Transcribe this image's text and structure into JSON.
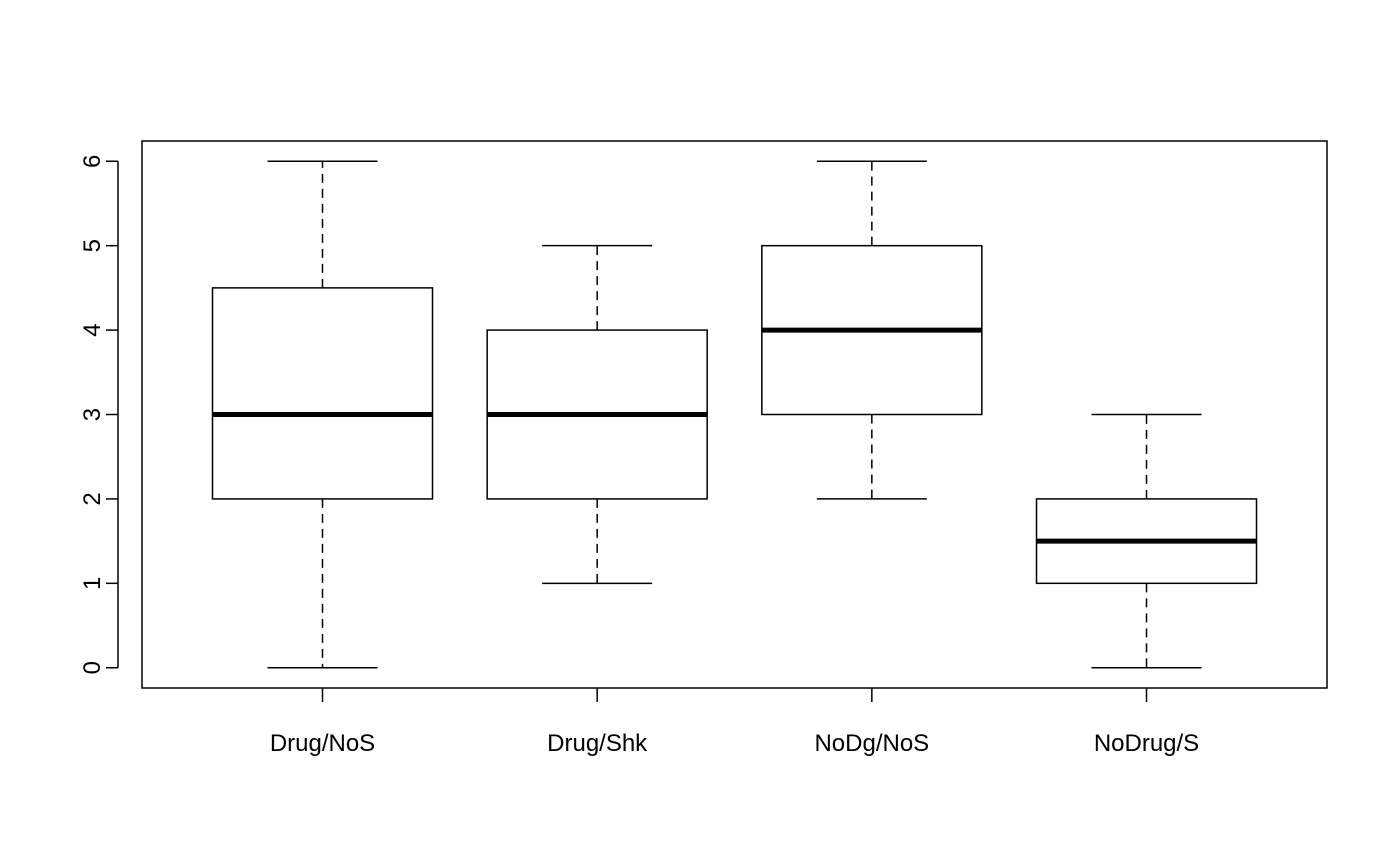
{
  "chart_data": {
    "type": "boxplot",
    "title": "",
    "xlabel": "",
    "ylabel": "",
    "categories": [
      "Drug/NoS",
      "Drug/Shk",
      "NoDg/NoS",
      "NoDrug/S"
    ],
    "boxes": [
      {
        "category": "Drug/NoS",
        "whisker_low": 0,
        "q1": 2,
        "median": 3,
        "q3": 4.5,
        "whisker_high": 6
      },
      {
        "category": "Drug/Shk",
        "whisker_low": 1,
        "q1": 2,
        "median": 3,
        "q3": 4,
        "whisker_high": 5
      },
      {
        "category": "NoDg/NoS",
        "whisker_low": 2,
        "q1": 3,
        "median": 4,
        "q3": 5,
        "whisker_high": 6
      },
      {
        "category": "NoDrug/S",
        "whisker_low": 0,
        "q1": 1,
        "median": 1.5,
        "q3": 2,
        "whisker_high": 3
      }
    ],
    "y_ticks": [
      "0",
      "1",
      "2",
      "3",
      "4",
      "5",
      "6"
    ],
    "ylim": [
      -0.24,
      6.24
    ],
    "grid": false,
    "legend": "none",
    "colors": {
      "box_fill": "#ffffff",
      "stroke": "#000000"
    }
  }
}
